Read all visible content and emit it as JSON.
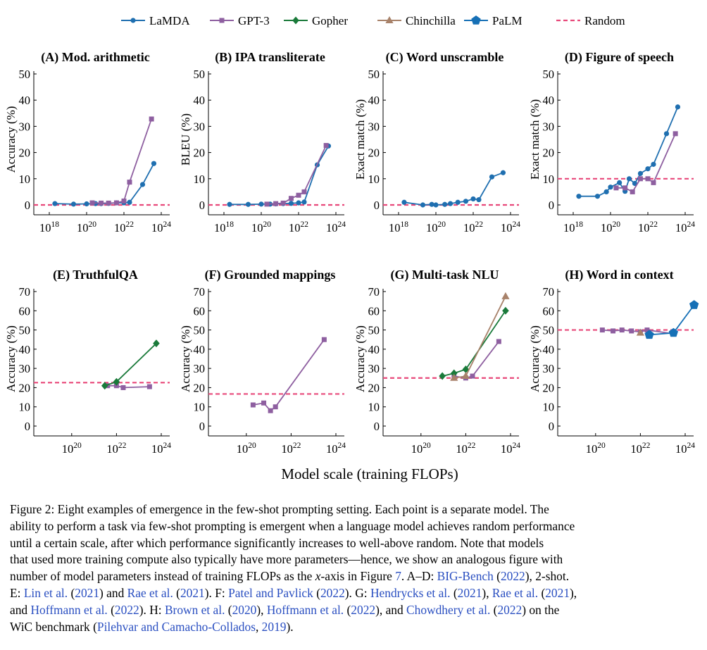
{
  "colors": {
    "LaMDA": "#1f6fb0",
    "GPT-3": "#8e5fa0",
    "Gopher": "#1a7a3a",
    "Chinchilla": "#a8826a",
    "PaLM": "#1670b6",
    "Random": "#e8487a",
    "citation": "#2a4fc1"
  },
  "legend": [
    {
      "name": "LaMDA",
      "marker": "circle"
    },
    {
      "name": "GPT-3",
      "marker": "square"
    },
    {
      "name": "Gopher",
      "marker": "diamond"
    },
    {
      "name": "Chinchilla",
      "marker": "triangle"
    },
    {
      "name": "PaLM",
      "marker": "pentagon"
    },
    {
      "name": "Random",
      "marker": "dashed-line"
    }
  ],
  "shared_xlabel": "Model scale (training FLOPs)",
  "chart_data": [
    {
      "type": "line",
      "title": "(A) Mod. arithmetic",
      "ylabel": "Accuracy (%)",
      "xscale": "log",
      "xlim": [
        1e+18,
        1e+24
      ],
      "ylim": [
        0,
        50
      ],
      "xticks": [
        "10^18",
        "10^20",
        "10^22",
        "10^24"
      ],
      "yticks": [
        0,
        10,
        20,
        30,
        40,
        50
      ],
      "random": 0,
      "series": [
        {
          "name": "LaMDA",
          "x": [
            2e+18,
            2e+19,
            1e+20,
            3e+20,
            6e+20,
            1.5e+21,
            4e+21,
            1e+22,
            2e+22,
            1e+23,
            4e+23
          ],
          "y": [
            0.5,
            0.3,
            0.4,
            0.5,
            0.5,
            0.6,
            0.8,
            0.8,
            1.0,
            7.8,
            15.8
          ]
        },
        {
          "name": "GPT-3",
          "x": [
            2e+20,
            6e+20,
            1.5e+21,
            4e+21,
            1e+22,
            2e+22,
            3e+23
          ],
          "y": [
            0.8,
            0.7,
            0.7,
            0.8,
            1.5,
            8.7,
            32.8
          ]
        }
      ]
    },
    {
      "type": "line",
      "title": "(B) IPA transliterate",
      "ylabel": "BLEU (%)",
      "xscale": "log",
      "xlim": [
        1e+18,
        1e+24
      ],
      "ylim": [
        0,
        50
      ],
      "xticks": [
        "10^18",
        "10^20",
        "10^22",
        "10^24"
      ],
      "yticks": [
        0,
        10,
        20,
        30,
        40,
        50
      ],
      "random": 0,
      "series": [
        {
          "name": "LaMDA",
          "x": [
            2e+18,
            2e+19,
            1e+20,
            3e+20,
            6e+20,
            1.5e+21,
            4e+21,
            1e+22,
            2e+22,
            1e+23,
            4e+23
          ],
          "y": [
            0.2,
            0.2,
            0.3,
            0.3,
            0.4,
            0.5,
            0.6,
            0.8,
            1.1,
            15.3,
            22.5
          ]
        },
        {
          "name": "GPT-3",
          "x": [
            2e+20,
            6e+20,
            1.5e+21,
            4e+21,
            1e+22,
            2e+22,
            3e+23
          ],
          "y": [
            0.3,
            0.5,
            0.7,
            2.5,
            3.7,
            5.0,
            22.7
          ]
        }
      ]
    },
    {
      "type": "line",
      "title": "(C) Word unscramble",
      "ylabel": "Exact match (%)",
      "xscale": "log",
      "xlim": [
        1e+18,
        1e+24
      ],
      "ylim": [
        0,
        50
      ],
      "xticks": [
        "10^18",
        "10^20",
        "10^22",
        "10^24"
      ],
      "yticks": [
        0,
        10,
        20,
        30,
        40,
        50
      ],
      "random": 0,
      "series": [
        {
          "name": "LaMDA",
          "x": [
            2e+18,
            2e+19,
            6e+19,
            1e+20,
            3e+20,
            6e+20,
            1.5e+21,
            4e+21,
            1e+22,
            2e+22,
            1e+23,
            4e+23
          ],
          "y": [
            1.0,
            0.0,
            0.2,
            0.0,
            0.2,
            0.5,
            1.0,
            1.4,
            2.3,
            2.0,
            10.7,
            12.3
          ]
        }
      ]
    },
    {
      "type": "line",
      "title": "(D) Figure of speech",
      "ylabel": "Exact match (%)",
      "xscale": "log",
      "xlim": [
        1e+18,
        1e+24
      ],
      "ylim": [
        0,
        50
      ],
      "xticks": [
        "10^18",
        "10^20",
        "10^22",
        "10^24"
      ],
      "yticks": [
        0,
        10,
        20,
        30,
        40,
        50
      ],
      "random": 10,
      "series": [
        {
          "name": "LaMDA",
          "x": [
            2e+18,
            2e+19,
            6e+19,
            1e+20,
            3e+20,
            6e+20,
            1e+21,
            2e+21,
            4e+21,
            1e+22,
            2e+22,
            1e+23,
            4e+23
          ],
          "y": [
            3.3,
            3.3,
            5.0,
            6.8,
            8.5,
            5.2,
            10.0,
            8.2,
            12.0,
            13.8,
            15.5,
            27.2,
            37.4
          ]
        },
        {
          "name": "GPT-3",
          "x": [
            2e+20,
            6e+20,
            1.5e+21,
            4e+21,
            1e+22,
            2e+22,
            3e+23
          ],
          "y": [
            6.5,
            6.5,
            5.0,
            10.0,
            10.0,
            8.5,
            27.2
          ]
        }
      ]
    },
    {
      "type": "line",
      "title": "(E) TruthfulQA",
      "ylabel": "Accuracy (%)",
      "xscale": "log",
      "xlim": [
        1e+19,
        1e+24
      ],
      "ylim": [
        0,
        70
      ],
      "xticks": [
        "10^20",
        "10^22",
        "10^24"
      ],
      "yticks": [
        0,
        10,
        20,
        30,
        40,
        50,
        60,
        70
      ],
      "random": 22.6,
      "series": [
        {
          "name": "GPT-3",
          "x": [
            4e+21,
            1e+22,
            2e+22,
            3e+23
          ],
          "y": [
            21.0,
            21.0,
            20.0,
            20.5
          ]
        },
        {
          "name": "Gopher",
          "x": [
            3e+21,
            1e+22,
            6e+23
          ],
          "y": [
            21.0,
            23.0,
            43.0
          ]
        }
      ]
    },
    {
      "type": "line",
      "title": "(F) Grounded mappings",
      "ylabel": "Accuracy (%)",
      "xscale": "log",
      "xlim": [
        1e+19,
        1e+24
      ],
      "ylim": [
        0,
        70
      ],
      "xticks": [
        "10^20",
        "10^22",
        "10^24"
      ],
      "yticks": [
        0,
        10,
        20,
        30,
        40,
        50,
        60,
        70
      ],
      "random": 16.7,
      "series": [
        {
          "name": "GPT-3",
          "x": [
            2e+20,
            6e+20,
            1.2e+21,
            2e+21,
            3e+23
          ],
          "y": [
            11.0,
            12.0,
            8.0,
            10.0,
            45.0
          ]
        }
      ]
    },
    {
      "type": "line",
      "title": "(G) Multi-task NLU",
      "ylabel": "Accuracy (%)",
      "xscale": "log",
      "xlim": [
        1e+19,
        1e+24
      ],
      "ylim": [
        0,
        70
      ],
      "xticks": [
        "10^20",
        "10^22",
        "10^24"
      ],
      "yticks": [
        0,
        10,
        20,
        30,
        40,
        50,
        60,
        70
      ],
      "random": 25,
      "series": [
        {
          "name": "GPT-3",
          "x": [
            3e+21,
            1e+22,
            2e+22,
            3e+23
          ],
          "y": [
            26.0,
            25.0,
            26.0,
            44.0
          ]
        },
        {
          "name": "Gopher",
          "x": [
            9e+20,
            3e+21,
            1e+22,
            6e+23
          ],
          "y": [
            26.0,
            27.5,
            29.5,
            60.0
          ]
        },
        {
          "name": "Chinchilla",
          "x": [
            3e+21,
            1e+22,
            6e+23
          ],
          "y": [
            25.0,
            26.0,
            67.5
          ]
        }
      ]
    },
    {
      "type": "line",
      "title": "(H) Word in context",
      "ylabel": "Accuracy (%)",
      "xscale": "log",
      "xlim": [
        1e+19,
        1e+24
      ],
      "ylim": [
        0,
        70
      ],
      "xticks": [
        "10^20",
        "10^22",
        "10^24"
      ],
      "yticks": [
        0,
        10,
        20,
        30,
        40,
        50,
        60,
        70
      ],
      "random": 50,
      "series": [
        {
          "name": "GPT-3",
          "x": [
            2e+20,
            6e+20,
            1.5e+21,
            4e+21,
            1e+22,
            2e+22,
            3e+23
          ],
          "y": [
            50.0,
            49.5,
            50.0,
            49.5,
            49.0,
            50.0,
            48.0
          ]
        },
        {
          "name": "Chinchilla",
          "x": [
            1e+22
          ],
          "y": [
            48.5
          ]
        },
        {
          "name": "PaLM",
          "x": [
            2.5e+22,
            3e+23,
            2.5e+24
          ],
          "y": [
            47.5,
            48.5,
            63.0
          ]
        }
      ]
    }
  ],
  "caption": {
    "lines": [
      [
        {
          "t": "Figure 2: Eight examples of emergence in the few-shot prompting setting. Each point is a separate model. The"
        }
      ],
      [
        {
          "t": "ability to perform a task via few-shot prompting is emergent when a language model achieves random performance"
        }
      ],
      [
        {
          "t": "until a certain scale, after which performance significantly increases to well-above random. Note that models"
        }
      ],
      [
        {
          "t": "that used more training compute also typically have more parameters—hence, we show an analogous figure with"
        }
      ],
      [
        {
          "t": "number of model parameters instead of training FLOPs as the "
        },
        {
          "t": "x",
          "i": true
        },
        {
          "t": "-axis in Figure "
        },
        {
          "t": "7",
          "c": true
        },
        {
          "t": ". A–D: "
        },
        {
          "t": "BIG-Bench",
          "c": true
        },
        {
          "t": " ("
        },
        {
          "t": "2022",
          "c": true
        },
        {
          "t": "), 2-shot."
        }
      ],
      [
        {
          "t": "E: "
        },
        {
          "t": "Lin et al.",
          "c": true
        },
        {
          "t": " ("
        },
        {
          "t": "2021",
          "c": true
        },
        {
          "t": ") and "
        },
        {
          "t": "Rae et al.",
          "c": true
        },
        {
          "t": " ("
        },
        {
          "t": "2021",
          "c": true
        },
        {
          "t": "). F: "
        },
        {
          "t": "Patel and Pavlick",
          "c": true
        },
        {
          "t": " ("
        },
        {
          "t": "2022",
          "c": true
        },
        {
          "t": "). G: "
        },
        {
          "t": "Hendrycks et al.",
          "c": true
        },
        {
          "t": " ("
        },
        {
          "t": "2021",
          "c": true
        },
        {
          "t": "), "
        },
        {
          "t": "Rae et al.",
          "c": true
        },
        {
          "t": " ("
        },
        {
          "t": "2021",
          "c": true
        },
        {
          "t": "),"
        }
      ],
      [
        {
          "t": "and "
        },
        {
          "t": "Hoffmann et al.",
          "c": true
        },
        {
          "t": " ("
        },
        {
          "t": "2022",
          "c": true
        },
        {
          "t": "). H: "
        },
        {
          "t": "Brown et al.",
          "c": true
        },
        {
          "t": " ("
        },
        {
          "t": "2020",
          "c": true
        },
        {
          "t": "), "
        },
        {
          "t": "Hoffmann et al.",
          "c": true
        },
        {
          "t": " ("
        },
        {
          "t": "2022",
          "c": true
        },
        {
          "t": "), and "
        },
        {
          "t": "Chowdhery et al.",
          "c": true
        },
        {
          "t": " ("
        },
        {
          "t": "2022",
          "c": true
        },
        {
          "t": ") on the"
        }
      ],
      [
        {
          "t": "WiC benchmark ("
        },
        {
          "t": "Pilehvar and Camacho-Collados",
          "c": true
        },
        {
          "t": ", "
        },
        {
          "t": "2019",
          "c": true
        },
        {
          "t": ")."
        }
      ]
    ]
  }
}
